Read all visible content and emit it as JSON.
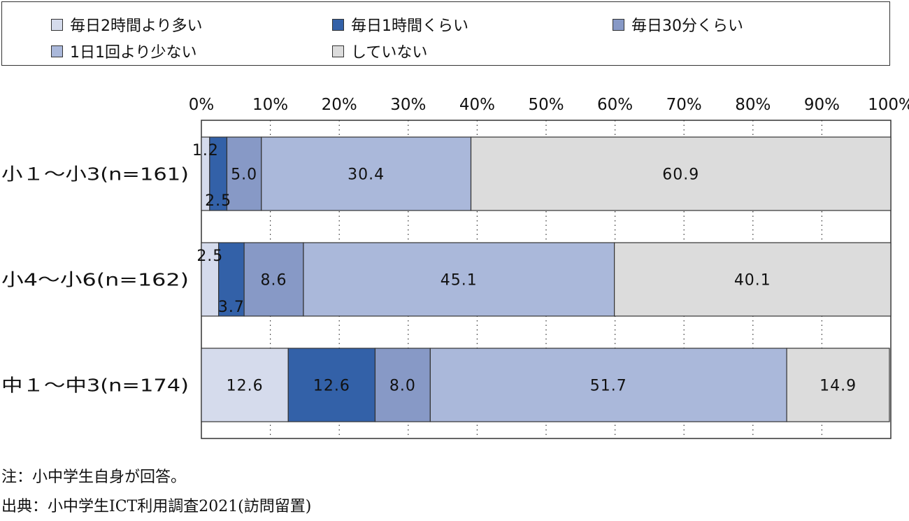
{
  "chart_data": {
    "type": "bar",
    "orientation": "horizontal",
    "stacked": true,
    "categories": [
      "小１～小3(n=161)",
      "小4～小6(n=162)",
      "中１～中3(n=174)"
    ],
    "series": [
      {
        "name": "毎日2時間より多い",
        "values": [
          1.2,
          2.5,
          12.6
        ],
        "color": "#d5dbec"
      },
      {
        "name": "毎日1時間くらい",
        "values": [
          2.5,
          3.7,
          12.6
        ],
        "color": "#3361a8"
      },
      {
        "name": "毎日30分くらい",
        "values": [
          5.0,
          8.6,
          8.0
        ],
        "color": "#8799c6"
      },
      {
        "name": "1日1回より少ない",
        "values": [
          30.4,
          45.1,
          51.7
        ],
        "color": "#aab8da"
      },
      {
        "name": "していない",
        "values": [
          60.9,
          40.1,
          14.9
        ],
        "color": "#dcdcdc"
      }
    ],
    "x_ticks": [
      "0%",
      "10%",
      "20%",
      "30%",
      "40%",
      "50%",
      "60%",
      "70%",
      "80%",
      "90%",
      "100%"
    ],
    "xlim": [
      0,
      100
    ],
    "legend_position": "top",
    "grid": "vertical dotted"
  },
  "notes": {
    "note": "注：小中学生自身が回答。",
    "source": "出典：小中学生ICT利用調査2021(訪問留置)"
  }
}
